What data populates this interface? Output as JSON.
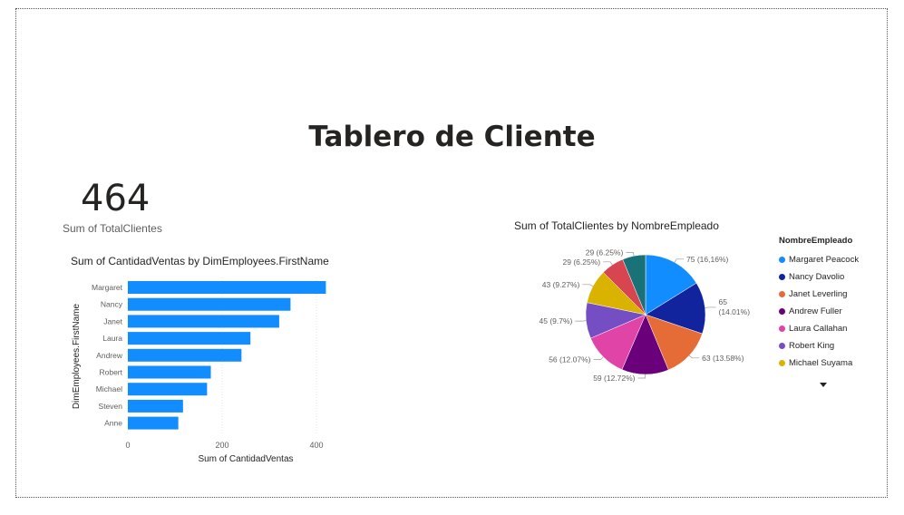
{
  "page": {
    "title": "Tablero de Cliente"
  },
  "kpi": {
    "value": "464",
    "label": "Sum of TotalClientes"
  },
  "colors": {
    "bar": "#118DFF",
    "grid": "#e6e6e6"
  },
  "chart_data": [
    {
      "type": "bar",
      "orientation": "horizontal",
      "title": "Sum of CantidadVentas by DimEmployees.FirstName",
      "xlabel": "Sum of CantidadVentas",
      "ylabel": "DimEmployees.FirstName",
      "categories": [
        "Margaret",
        "Nancy",
        "Janet",
        "Laura",
        "Andrew",
        "Robert",
        "Michael",
        "Steven",
        "Anne"
      ],
      "values": [
        420,
        345,
        321,
        260,
        241,
        176,
        168,
        117,
        107
      ],
      "xlim": [
        0,
        440
      ],
      "xticks": [
        "0",
        "200",
        "400"
      ],
      "grid": true
    },
    {
      "type": "pie",
      "title": "Sum of TotalClientes by NombreEmpleado",
      "legend_title": "NombreEmpleado",
      "legend_position": "right",
      "legend": [
        "Margaret Peacock",
        "Nancy Davolio",
        "Janet Leverling",
        "Andrew Fuller",
        "Laura Callahan",
        "Robert King",
        "Michael Suyama"
      ],
      "slices": [
        {
          "value": 75,
          "label": "75 (16,16%)",
          "color": "#118DFF"
        },
        {
          "value": 65,
          "label": "65 (14.01%)",
          "color": "#12239E"
        },
        {
          "value": 63,
          "label": "63 (13.58%)",
          "color": "#E66C37"
        },
        {
          "value": 59,
          "label": "59 (12.72%)",
          "color": "#6B007B"
        },
        {
          "value": 56,
          "label": "56 (12.07%)",
          "color": "#E044A7"
        },
        {
          "value": 45,
          "label": "45 (9.7%)",
          "color": "#744EC2"
        },
        {
          "value": 43,
          "label": "43 (9.27%)",
          "color": "#D9B300"
        },
        {
          "value": 29,
          "label": "29 (6.25%)",
          "color": "#D64550"
        },
        {
          "value": 29,
          "label": "29 (6.25%)",
          "color": "#197278"
        }
      ]
    }
  ]
}
